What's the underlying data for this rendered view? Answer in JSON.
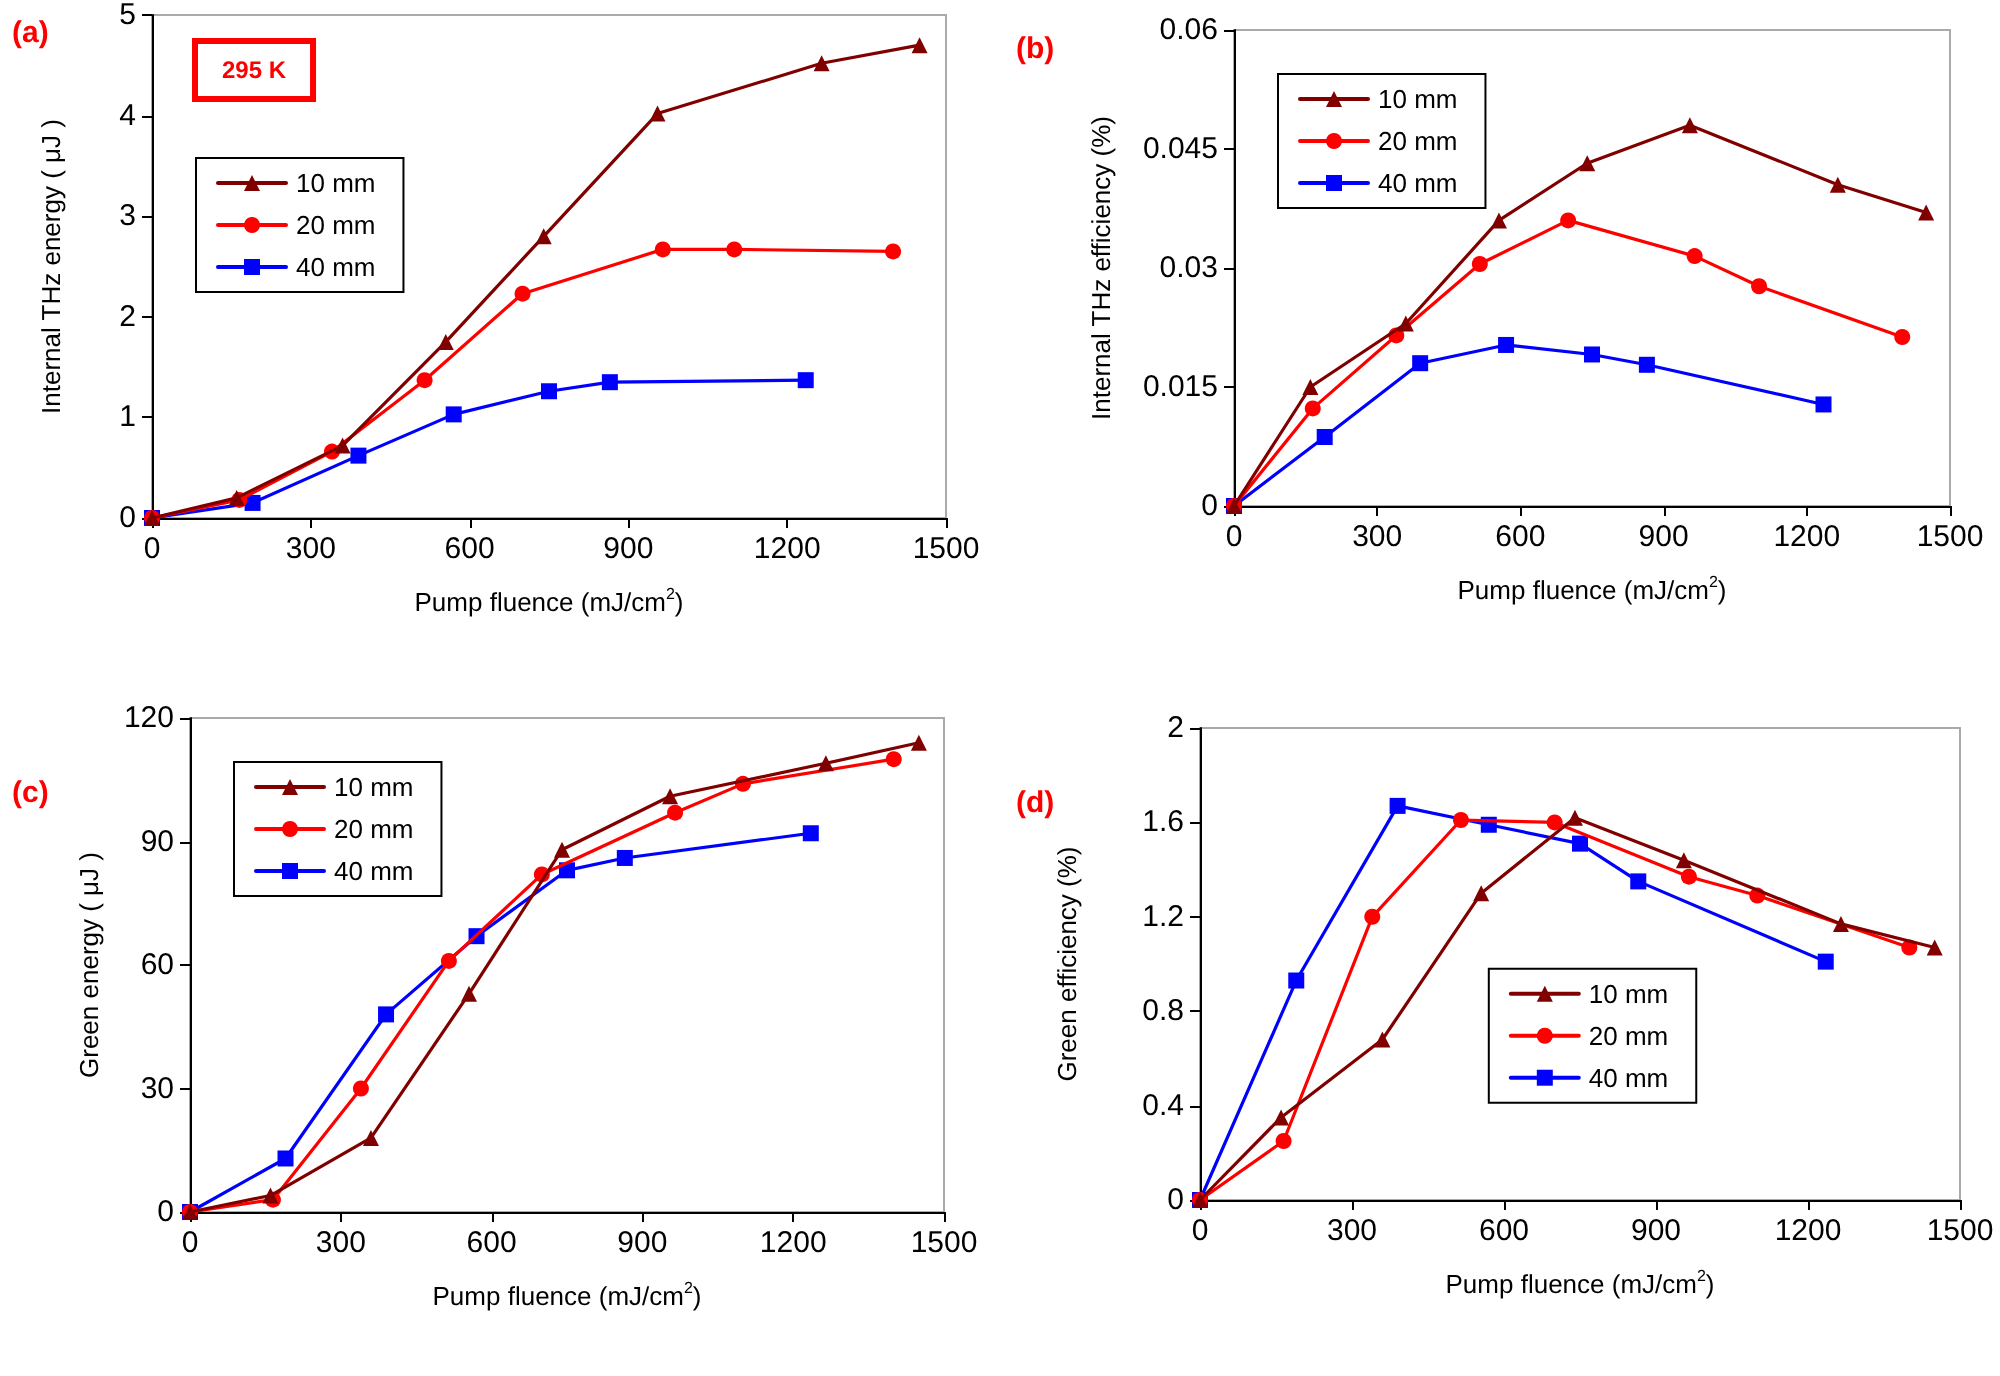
{
  "chart_data": [
    {
      "type": "line",
      "title": null,
      "annotations": [
        "(a)",
        "295 K"
      ],
      "xlabel": "Pump fluence (mJ/cm$^{2}$)",
      "ylabel": "Internal THz energy ( μJ )",
      "xlim": [
        0,
        1500
      ],
      "xticks": [
        0,
        300,
        600,
        900,
        1200,
        1500
      ],
      "ylim": [
        0,
        5
      ],
      "yticks": [
        0,
        1,
        2,
        3,
        4,
        5
      ],
      "grid": false,
      "legend": "top left",
      "series": [
        {
          "name": "10 mm",
          "color": "#800000",
          "marker": "triangle",
          "x": [
            0,
            160,
            360,
            555,
            740,
            955,
            1265,
            1450
          ],
          "values": [
            0,
            0.2,
            0.72,
            1.75,
            2.8,
            4.02,
            4.52,
            4.7
          ]
        },
        {
          "name": "20 mm",
          "color": "#ff0000",
          "marker": "circle",
          "x": [
            0,
            165,
            340,
            515,
            700,
            965,
            1100,
            1400
          ],
          "values": [
            0,
            0.18,
            0.66,
            1.37,
            2.23,
            2.67,
            2.67,
            2.65
          ]
        },
        {
          "name": "40 mm",
          "color": "#0000ff",
          "marker": "square",
          "x": [
            0,
            190,
            390,
            570,
            750,
            865,
            1235
          ],
          "values": [
            0,
            0.15,
            0.62,
            1.03,
            1.26,
            1.35,
            1.37
          ]
        }
      ]
    },
    {
      "type": "line",
      "annotations": [
        "(b)"
      ],
      "xlabel": "Pump fluence (mJ/cm$^{2}$)",
      "ylabel": "Internal THz efficiency (%)",
      "xlim": [
        0,
        1500
      ],
      "xticks": [
        0,
        300,
        600,
        900,
        1200,
        1500
      ],
      "ylim": [
        0,
        0.06
      ],
      "yticks": [
        0,
        0.015,
        0.03,
        0.045,
        0.06
      ],
      "grid": false,
      "legend": "top left",
      "series": [
        {
          "name": "10 mm",
          "color": "#800000",
          "marker": "triangle",
          "x": [
            0,
            160,
            360,
            555,
            740,
            955,
            1265,
            1450
          ],
          "values": [
            0,
            0.015,
            0.023,
            0.036,
            0.0432,
            0.048,
            0.0405,
            0.037
          ]
        },
        {
          "name": "20 mm",
          "color": "#ff0000",
          "marker": "circle",
          "x": [
            0,
            165,
            340,
            515,
            700,
            965,
            1100,
            1400
          ],
          "values": [
            0,
            0.0123,
            0.0215,
            0.0305,
            0.036,
            0.0315,
            0.0277,
            0.0213
          ]
        },
        {
          "name": "40 mm",
          "color": "#0000ff",
          "marker": "square",
          "x": [
            0,
            190,
            390,
            570,
            750,
            865,
            1235
          ],
          "values": [
            0,
            0.0087,
            0.018,
            0.0203,
            0.0191,
            0.0178,
            0.0128
          ]
        }
      ]
    },
    {
      "type": "line",
      "annotations": [
        "(c)"
      ],
      "xlabel": "Pump fluence (mJ/cm$^{2}$)",
      "ylabel": "Green energy ( μJ )",
      "xlim": [
        0,
        1500
      ],
      "xticks": [
        0,
        300,
        600,
        900,
        1200,
        1500
      ],
      "ylim": [
        0,
        120
      ],
      "yticks": [
        0,
        30,
        60,
        90,
        120
      ],
      "grid": false,
      "legend": "top left",
      "series": [
        {
          "name": "10 mm",
          "color": "#800000",
          "marker": "triangle",
          "x": [
            0,
            160,
            360,
            555,
            740,
            955,
            1265,
            1450
          ],
          "values": [
            0,
            4,
            18,
            53,
            88,
            101,
            109,
            114
          ]
        },
        {
          "name": "20 mm",
          "color": "#ff0000",
          "marker": "circle",
          "x": [
            0,
            165,
            340,
            515,
            700,
            965,
            1100,
            1400
          ],
          "values": [
            0,
            3,
            30,
            61,
            82,
            97,
            104,
            110
          ]
        },
        {
          "name": "40 mm",
          "color": "#0000ff",
          "marker": "square",
          "x": [
            0,
            190,
            390,
            570,
            750,
            865,
            1235
          ],
          "values": [
            0,
            13,
            48,
            67,
            83,
            86,
            92
          ]
        }
      ]
    },
    {
      "type": "line",
      "annotations": [
        "(d)"
      ],
      "xlabel": "Pump fluence (mJ/cm$^{2}$)",
      "ylabel": "Green efficiency (%)",
      "xlim": [
        0,
        1500
      ],
      "xticks": [
        0,
        300,
        600,
        900,
        1200,
        1500
      ],
      "ylim": [
        0,
        2
      ],
      "yticks": [
        0,
        0.4,
        0.8,
        1.2,
        1.6,
        2
      ],
      "grid": false,
      "legend": "center right",
      "series": [
        {
          "name": "10 mm",
          "color": "#800000",
          "marker": "triangle",
          "x": [
            0,
            160,
            360,
            555,
            740,
            955,
            1265,
            1450
          ],
          "values": [
            0,
            0.35,
            0.68,
            1.3,
            1.62,
            1.44,
            1.17,
            1.07
          ]
        },
        {
          "name": "20 mm",
          "color": "#ff0000",
          "marker": "circle",
          "x": [
            0,
            165,
            340,
            515,
            700,
            965,
            1100,
            1400
          ],
          "values": [
            0,
            0.25,
            1.2,
            1.61,
            1.6,
            1.37,
            1.29,
            1.07
          ]
        },
        {
          "name": "40 mm",
          "color": "#0000ff",
          "marker": "square",
          "x": [
            0,
            190,
            390,
            570,
            750,
            865,
            1235
          ],
          "values": [
            0,
            0.93,
            1.67,
            1.59,
            1.51,
            1.35,
            1.01
          ]
        }
      ]
    }
  ]
}
